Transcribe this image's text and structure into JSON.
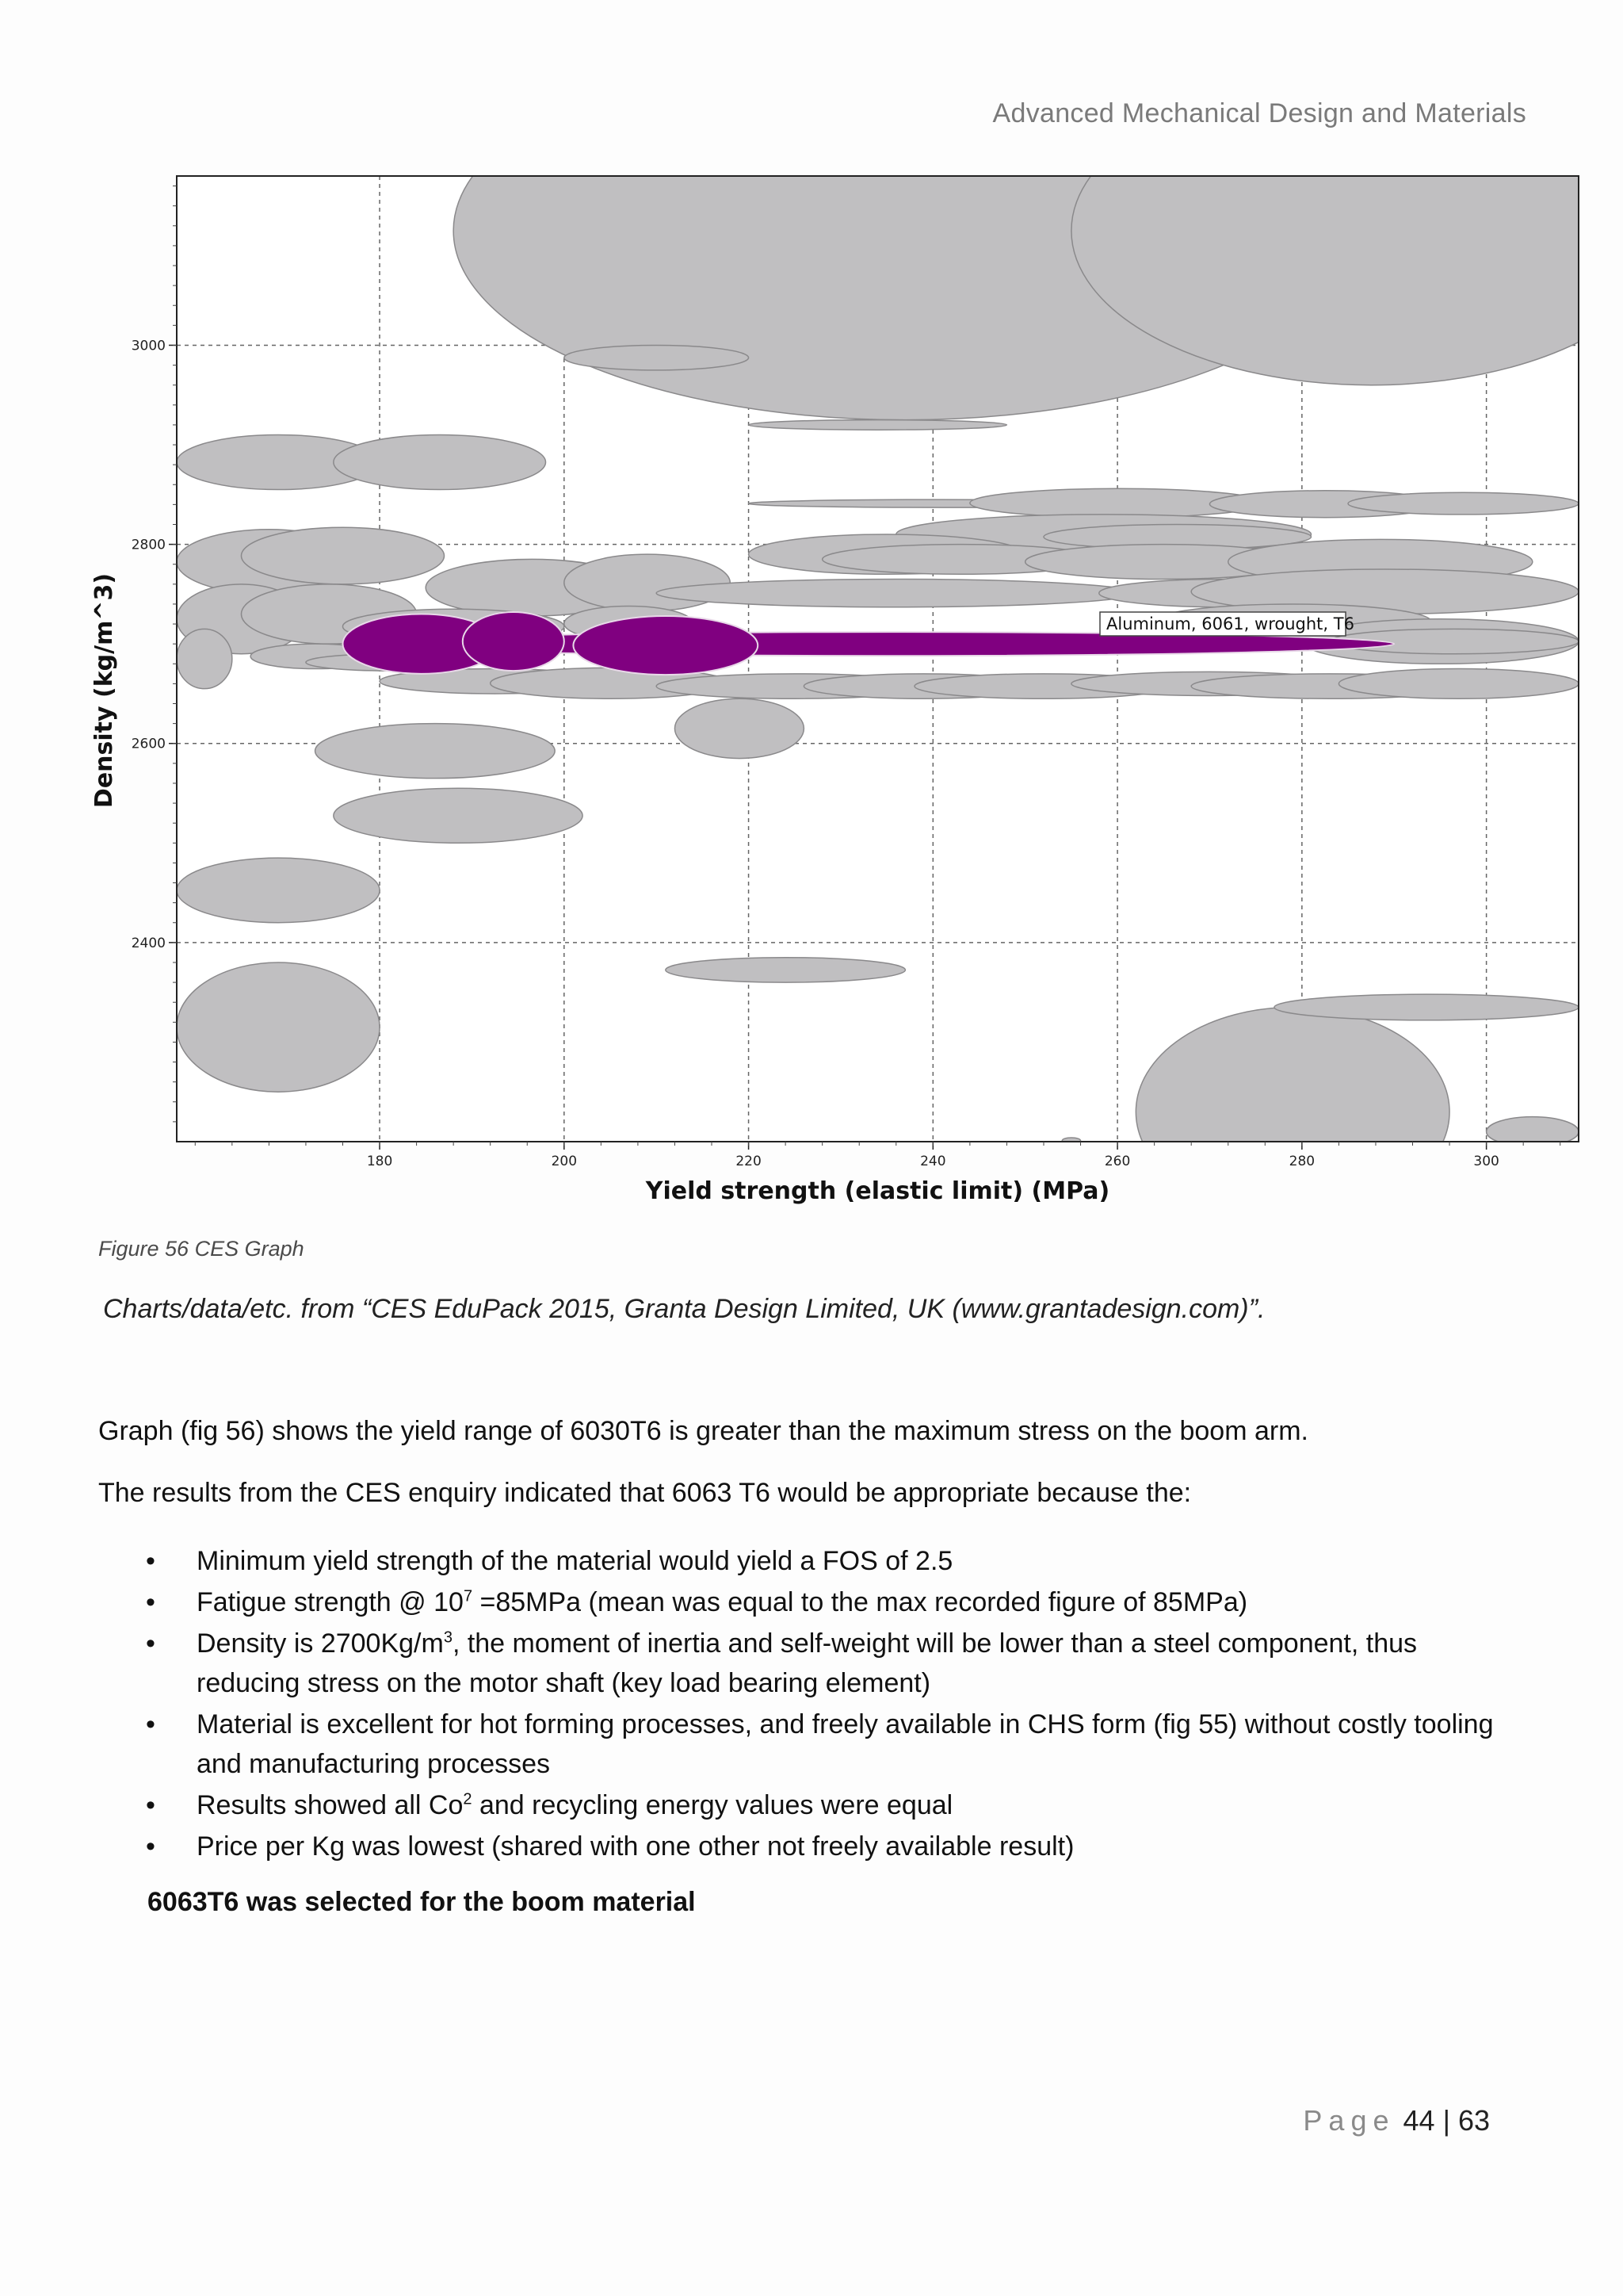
{
  "header": {
    "title": "Advanced Mechanical Design and Materials"
  },
  "chart_data": {
    "type": "bubble",
    "xlabel": "Yield strength (elastic limit) (MPa)",
    "ylabel": "Density (kg/m^3)",
    "xlim": [
      158,
      310
    ],
    "ylim": [
      2200,
      3170
    ],
    "x_ticks": [
      "180",
      "200",
      "220",
      "240",
      "260",
      "280",
      "300"
    ],
    "y_ticks": [
      "2400",
      "2600",
      "2800",
      "3000"
    ],
    "grid": true,
    "highlight": {
      "label": "Aluminum, 6061, wrought, T6",
      "color": "#800080"
    },
    "background_color": "#c0bfc1",
    "highlight_bubbles": [
      {
        "x_range": [
          180,
          290
        ],
        "y_range": [
          2688,
          2712
        ]
      },
      {
        "x_range": [
          176,
          193
        ],
        "y_range": [
          2670,
          2730
        ]
      },
      {
        "x_range": [
          189,
          200
        ],
        "y_range": [
          2673,
          2732
        ]
      },
      {
        "x_range": [
          201,
          221
        ],
        "y_range": [
          2669,
          2728
        ]
      }
    ],
    "bubbles": [
      {
        "x_range": [
          188,
          286
        ],
        "y_range": [
          2925,
          3305
        ]
      },
      {
        "x_range": [
          255,
          320
        ],
        "y_range": [
          2960,
          3270
        ]
      },
      {
        "x_range": [
          200,
          220
        ],
        "y_range": [
          2975,
          3000
        ]
      },
      {
        "x_range": [
          220,
          248
        ],
        "y_range": [
          2915,
          2925
        ]
      },
      {
        "x_range": [
          158,
          180
        ],
        "y_range": [
          2855,
          2910
        ]
      },
      {
        "x_range": [
          175,
          198
        ],
        "y_range": [
          2855,
          2910
        ]
      },
      {
        "x_range": [
          220,
          262
        ],
        "y_range": [
          2837,
          2845
        ]
      },
      {
        "x_range": [
          244,
          276
        ],
        "y_range": [
          2827,
          2856
        ]
      },
      {
        "x_range": [
          270,
          295
        ],
        "y_range": [
          2827,
          2854
        ]
      },
      {
        "x_range": [
          285,
          310
        ],
        "y_range": [
          2830,
          2852
        ]
      },
      {
        "x_range": [
          236,
          281
        ],
        "y_range": [
          2790,
          2830
        ]
      },
      {
        "x_range": [
          252,
          281
        ],
        "y_range": [
          2795,
          2820
        ]
      },
      {
        "x_range": [
          220,
          250
        ],
        "y_range": [
          2770,
          2810
        ]
      },
      {
        "x_range": [
          228,
          258
        ],
        "y_range": [
          2770,
          2800
        ]
      },
      {
        "x_range": [
          250,
          280
        ],
        "y_range": [
          2765,
          2800
        ]
      },
      {
        "x_range": [
          272,
          305
        ],
        "y_range": [
          2760,
          2805
        ]
      },
      {
        "x_range": [
          158,
          178
        ],
        "y_range": [
          2750,
          2815
        ]
      },
      {
        "x_range": [
          165,
          187
        ],
        "y_range": [
          2760,
          2817
        ]
      },
      {
        "x_range": [
          185,
          208
        ],
        "y_range": [
          2728,
          2785
        ]
      },
      {
        "x_range": [
          200,
          218
        ],
        "y_range": [
          2733,
          2790
        ]
      },
      {
        "x_range": [
          210,
          262
        ],
        "y_range": [
          2737,
          2765
        ]
      },
      {
        "x_range": [
          258,
          285
        ],
        "y_range": [
          2737,
          2765
        ]
      },
      {
        "x_range": [
          268,
          310
        ],
        "y_range": [
          2730,
          2775
        ]
      },
      {
        "x_range": [
          158,
          172
        ],
        "y_range": [
          2690,
          2760
        ]
      },
      {
        "x_range": [
          165,
          184
        ],
        "y_range": [
          2700,
          2760
        ]
      },
      {
        "x_range": [
          176,
          200
        ],
        "y_range": [
          2700,
          2735
        ]
      },
      {
        "x_range": [
          200,
          214
        ],
        "y_range": [
          2703,
          2738
        ]
      },
      {
        "x_range": [
          264,
          294
        ],
        "y_range": [
          2705,
          2740
        ]
      },
      {
        "x_range": [
          280,
          310
        ],
        "y_range": [
          2680,
          2725
        ]
      },
      {
        "x_range": [
          283,
          310
        ],
        "y_range": [
          2690,
          2715
        ]
      },
      {
        "x_range": [
          158,
          164
        ],
        "y_range": [
          2655,
          2715
        ]
      },
      {
        "x_range": [
          166,
          180
        ],
        "y_range": [
          2675,
          2700
        ]
      },
      {
        "x_range": [
          172,
          190
        ],
        "y_range": [
          2673,
          2690
        ]
      },
      {
        "x_range": [
          180,
          205
        ],
        "y_range": [
          2650,
          2675
        ]
      },
      {
        "x_range": [
          192,
          218
        ],
        "y_range": [
          2645,
          2676
        ]
      },
      {
        "x_range": [
          210,
          240
        ],
        "y_range": [
          2645,
          2670
        ]
      },
      {
        "x_range": [
          226,
          252
        ],
        "y_range": [
          2645,
          2670
        ]
      },
      {
        "x_range": [
          238,
          266
        ],
        "y_range": [
          2645,
          2670
        ]
      },
      {
        "x_range": [
          255,
          285
        ],
        "y_range": [
          2648,
          2672
        ]
      },
      {
        "x_range": [
          268,
          298
        ],
        "y_range": [
          2645,
          2670
        ]
      },
      {
        "x_range": [
          284,
          310
        ],
        "y_range": [
          2645,
          2675
        ]
      },
      {
        "x_range": [
          212,
          226
        ],
        "y_range": [
          2585,
          2645
        ]
      },
      {
        "x_range": [
          173,
          199
        ],
        "y_range": [
          2565,
          2620
        ]
      },
      {
        "x_range": [
          175,
          202
        ],
        "y_range": [
          2500,
          2555
        ]
      },
      {
        "x_range": [
          158,
          180
        ],
        "y_range": [
          2420,
          2485
        ]
      },
      {
        "x_range": [
          211,
          237
        ],
        "y_range": [
          2360,
          2385
        ]
      },
      {
        "x_range": [
          158,
          180
        ],
        "y_range": [
          2250,
          2380
        ]
      },
      {
        "x_range": [
          262,
          296
        ],
        "y_range": [
          2125,
          2335
        ]
      },
      {
        "x_range": [
          277,
          310
        ],
        "y_range": [
          2322,
          2348
        ]
      },
      {
        "x_range": [
          300,
          310
        ],
        "y_range": [
          2195,
          2225
        ]
      },
      {
        "x_range": [
          254,
          256
        ],
        "y_range": [
          2198,
          2204
        ]
      }
    ]
  },
  "figure": {
    "caption": "Figure 56 CES Graph",
    "credit": "Charts/data/etc. from “CES EduPack 2015, Granta Design Limited, UK (www.grantadesign.com)”."
  },
  "body": {
    "para1": "Graph (fig 56) shows the yield range of 6030T6 is greater than the maximum stress on the boom arm.",
    "para2": "The results from the CES enquiry indicated that 6063 T6 would be appropriate because the:",
    "bullet_marker": "•",
    "bullet1": "Minimum yield strength of the material would yield a FOS of 2.5",
    "bullet2_a": "Fatigue strength @ 10",
    "bullet2_sup": "7",
    "bullet2_b": " =85MPa (mean was equal to the max recorded figure of 85MPa)",
    "bullet3_a": "Density is 2700Kg/m",
    "bullet3_sup": "3",
    "bullet3_b": ", the moment of inertia and self-weight will be lower than a steel component, thus reducing stress on the motor shaft (key load bearing element)",
    "bullet4": "Material is excellent for hot forming processes, and freely available in CHS form (fig 55) without costly tooling and manufacturing processes",
    "bullet5_a": "Results showed all Co",
    "bullet5_sup": "2",
    "bullet5_b": " and recycling energy values were equal",
    "bullet6": "Price per Kg was lowest (shared with one other not freely available result)",
    "conclusion": "6063T6 was selected for the boom material"
  },
  "footer": {
    "page_word": "Page",
    "page_current": "44",
    "separator": "|",
    "page_total": "63"
  }
}
